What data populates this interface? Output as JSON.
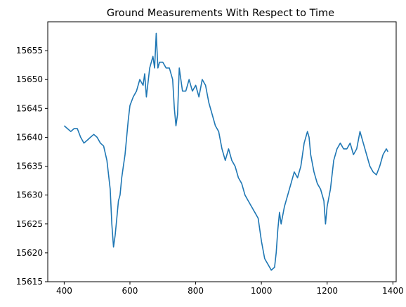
{
  "chart_data": {
    "type": "line",
    "title": "Ground Measurements With Respect to Time",
    "xlabel": "",
    "ylabel": "",
    "xlim": [
      350,
      1410
    ],
    "ylim": [
      15615,
      15660
    ],
    "xticks": [
      400,
      600,
      800,
      1000,
      1200,
      1400
    ],
    "yticks": [
      15615,
      15620,
      15625,
      15630,
      15635,
      15640,
      15645,
      15650,
      15655
    ],
    "grid": false,
    "series": [
      {
        "color": "#1f77b4",
        "x": [
          400,
          410,
          420,
          430,
          440,
          450,
          460,
          470,
          480,
          490,
          500,
          510,
          520,
          530,
          540,
          545,
          550,
          555,
          560,
          565,
          570,
          575,
          580,
          585,
          590,
          595,
          600,
          610,
          620,
          630,
          640,
          645,
          650,
          660,
          670,
          675,
          680,
          685,
          690,
          700,
          710,
          720,
          730,
          735,
          740,
          745,
          750,
          760,
          770,
          780,
          790,
          800,
          810,
          820,
          830,
          840,
          850,
          860,
          870,
          880,
          890,
          900,
          910,
          920,
          930,
          940,
          950,
          960,
          970,
          980,
          990,
          1000,
          1010,
          1020,
          1030,
          1040,
          1045,
          1050,
          1055,
          1060,
          1070,
          1080,
          1090,
          1100,
          1110,
          1120,
          1130,
          1140,
          1145,
          1150,
          1160,
          1170,
          1180,
          1190,
          1195,
          1200,
          1210,
          1220,
          1230,
          1240,
          1250,
          1260,
          1270,
          1280,
          1290,
          1300,
          1310,
          1320,
          1330,
          1340,
          1350,
          1360,
          1370,
          1380,
          1385
        ],
        "y": [
          15642,
          15641.5,
          15641,
          15641.5,
          15641.5,
          15640,
          15639,
          15639.5,
          15640,
          15640.5,
          15640,
          15639,
          15638.5,
          15636,
          15631,
          15625,
          15621,
          15623,
          15626,
          15629,
          15630,
          15633,
          15635,
          15637,
          15640,
          15643,
          15645.5,
          15647,
          15648,
          15650,
          15649,
          15651,
          15647,
          15652,
          15654,
          15652,
          15658,
          15652,
          15653,
          15653,
          15652,
          15652,
          15650,
          15645,
          15642,
          15644,
          15652,
          15648,
          15648,
          15650,
          15648,
          15649,
          15647,
          15650,
          15649,
          15646,
          15644,
          15642,
          15641,
          15638,
          15636,
          15638,
          15636,
          15635,
          15633,
          15632,
          15630,
          15629,
          15628,
          15627,
          15626,
          15622,
          15619,
          15618,
          15617,
          15617.5,
          15620,
          15624,
          15627,
          15625,
          15628,
          15630,
          15632,
          15634,
          15633,
          15635,
          15639,
          15641,
          15640,
          15637,
          15634,
          15632,
          15631,
          15629,
          15625,
          15628,
          15631,
          15636,
          15638,
          15639,
          15638,
          15638,
          15639,
          15637,
          15638,
          15641,
          15639,
          15637,
          15635,
          15634,
          15633.5,
          15635,
          15637,
          15638,
          15637.5
        ]
      }
    ]
  }
}
